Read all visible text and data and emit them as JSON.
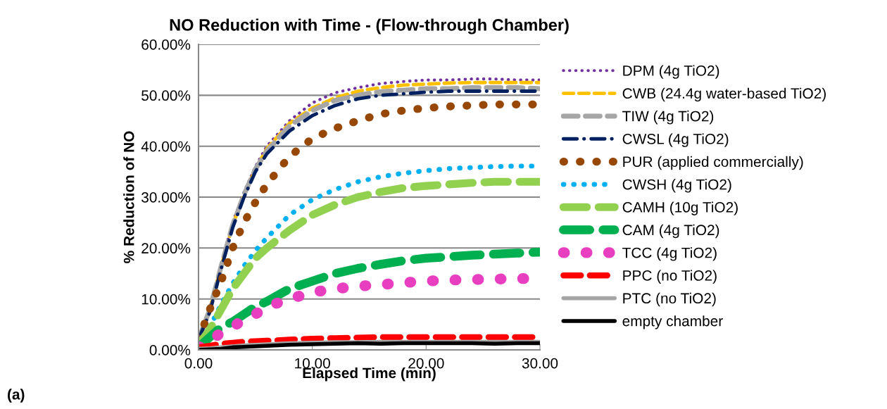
{
  "chart_data": {
    "type": "line",
    "title": "NO Reduction with Time - (Flow-through Chamber)",
    "xlabel": "Elapsed Time (min)",
    "ylabel": "% Reduction of NO",
    "annotations": [
      "(a)"
    ],
    "x": [
      0,
      1,
      2,
      3,
      4,
      5,
      6,
      8,
      10,
      12,
      14,
      16,
      18,
      20,
      22,
      24,
      26,
      28,
      30
    ],
    "series": [
      {
        "name": "DPM (4g TiO2)",
        "color": "#7030a0",
        "line_style": "dotted",
        "values": [
          2,
          8,
          17,
          25,
          31,
          36,
          40,
          45,
          48.5,
          50.5,
          51.5,
          52.3,
          52.7,
          53,
          53,
          53.2,
          53.2,
          53,
          53
        ]
      },
      {
        "name": "CWB (24.4g water-based TiO2)",
        "color": "#ffc000",
        "line_style": "dashed",
        "values": [
          2,
          8,
          16.5,
          24.5,
          30.5,
          35.5,
          39.5,
          44.5,
          47.5,
          49.5,
          50.8,
          51.5,
          52,
          52.2,
          52.4,
          52.5,
          52.5,
          52.5,
          52.5
        ]
      },
      {
        "name": "TIW (4g TiO2)",
        "color": "#a6a6a6",
        "line_style": "dashed",
        "values": [
          2,
          8,
          16.5,
          24.5,
          30.5,
          35.5,
          39,
          44,
          47,
          49,
          50,
          50.7,
          51,
          51.3,
          51.3,
          51.5,
          51.5,
          51.5,
          51.3
        ]
      },
      {
        "name": "CWSL (4g TiO2)",
        "color": "#002060",
        "line_style": "dashdot",
        "values": [
          2,
          7.5,
          16,
          24,
          30,
          35,
          38.5,
          43,
          46,
          48,
          49.3,
          50,
          50.3,
          50.6,
          50.8,
          50.8,
          50.8,
          50.8,
          50.8
        ]
      },
      {
        "name": "PUR (applied commercially)",
        "color": "#974706",
        "line_style": "dotted",
        "values": [
          2,
          8,
          13.5,
          20,
          25,
          29,
          32.5,
          38,
          41.5,
          43.5,
          45,
          46.3,
          47,
          47.5,
          47.8,
          48,
          48.2,
          48.2,
          48.2
        ]
      },
      {
        "name": "CWSH (4g TiO2)",
        "color": "#00b0f0",
        "line_style": "dotted",
        "values": [
          1,
          4.5,
          9,
          13,
          16.5,
          19.5,
          22,
          26.5,
          29.5,
          31.5,
          33,
          34,
          34.7,
          35.2,
          35.6,
          35.8,
          36,
          36.1,
          36.1
        ]
      },
      {
        "name": "CAMH (10g TiO2)",
        "color": "#92d050",
        "line_style": "dashed",
        "values": [
          1,
          4,
          8,
          12,
          15,
          18,
          20,
          23.5,
          26.5,
          28.5,
          30,
          31,
          31.8,
          32.2,
          32.5,
          32.8,
          33,
          33,
          33
        ]
      },
      {
        "name": "CAM (4g TiO2)",
        "color": "#00b050",
        "line_style": "dashed",
        "values": [
          0.5,
          2.5,
          4.5,
          5.5,
          7,
          8.5,
          9.5,
          12,
          13.5,
          15,
          16,
          16.8,
          17.5,
          18,
          18.3,
          18.6,
          18.8,
          19,
          19.2
        ]
      },
      {
        "name": "TCC (4g TiO2)",
        "color": "#e83ec0",
        "line_style": "dotted",
        "values": [
          0.5,
          1.5,
          3.5,
          4.5,
          6,
          7,
          8.5,
          10,
          11.3,
          12,
          12.5,
          12.8,
          13.2,
          13.5,
          13.7,
          13.8,
          13.9,
          14,
          14
        ]
      },
      {
        "name": "PPC (no TiO2)",
        "color": "#ff0000",
        "line_style": "dashed",
        "values": [
          0.5,
          0.8,
          1.2,
          1.4,
          1.6,
          1.7,
          1.8,
          2,
          2.2,
          2.3,
          2.4,
          2.5,
          2.5,
          2.5,
          2.5,
          2.5,
          2.5,
          2.5,
          2.5
        ]
      },
      {
        "name": "PTC (no TiO2)",
        "color": "#a6a6a6",
        "line_style": "solid",
        "values": [
          0.2,
          0.3,
          0.5,
          0.7,
          0.9,
          1,
          1.1,
          1.3,
          1.4,
          1.5,
          1.5,
          1.6,
          1.6,
          1.6,
          1.6,
          1.6,
          1.6,
          1.6,
          1.6
        ]
      },
      {
        "name": "empty chamber",
        "color": "#000000",
        "line_style": "solid",
        "values": [
          0,
          0.1,
          0.2,
          0.5,
          0.6,
          0.7,
          0.8,
          1,
          1.1,
          1.2,
          1.3,
          1.2,
          1.3,
          1.3,
          1.3,
          1.3,
          1.2,
          1.3,
          1.3
        ]
      }
    ],
    "xlim": [
      0,
      30
    ],
    "xticks": [
      {
        "value": 0,
        "label": "0.00"
      },
      {
        "value": 10,
        "label": "10.00"
      },
      {
        "value": 20,
        "label": "20.00"
      },
      {
        "value": 30,
        "label": "30.00"
      }
    ],
    "ylim": [
      0,
      60
    ],
    "yticks": [
      {
        "value": 0,
        "label": "0.00%"
      },
      {
        "value": 10,
        "label": "10.00%"
      },
      {
        "value": 20,
        "label": "20.00%"
      },
      {
        "value": 30,
        "label": "30.00%"
      },
      {
        "value": 40,
        "label": "40.00%"
      },
      {
        "value": 50,
        "label": "50.00%"
      },
      {
        "value": 60,
        "label": "60.00%"
      }
    ],
    "grid": "y",
    "legend": "right"
  }
}
